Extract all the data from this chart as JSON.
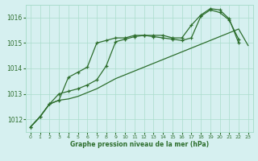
{
  "xlabel": "Graphe pression niveau de la mer (hPa)",
  "background_color": "#d6f0f0",
  "grid_color": "#aaddcc",
  "line_color": "#2d6e2d",
  "marker": "+",
  "ylim": [
    1011.5,
    1016.5
  ],
  "xlim": [
    -0.5,
    23.5
  ],
  "yticks": [
    1012,
    1013,
    1014,
    1015,
    1016
  ],
  "xticks": [
    0,
    1,
    2,
    3,
    4,
    5,
    6,
    7,
    8,
    9,
    10,
    11,
    12,
    13,
    14,
    15,
    16,
    17,
    18,
    19,
    20,
    21,
    22,
    23
  ],
  "line1_x": [
    0,
    1,
    2,
    3,
    4,
    5,
    6,
    7,
    8,
    9,
    10,
    11,
    12,
    13,
    14,
    15,
    16,
    17,
    18,
    19,
    20,
    21,
    22,
    23
  ],
  "line1_y": [
    1011.7,
    1012.1,
    1012.6,
    1012.75,
    1012.8,
    1012.9,
    1013.05,
    1013.2,
    1013.4,
    1013.6,
    1013.75,
    1013.9,
    1014.05,
    1014.2,
    1014.35,
    1014.5,
    1014.65,
    1014.8,
    1014.95,
    1015.1,
    1015.25,
    1015.4,
    1015.55,
    1014.9
  ],
  "line2_x": [
    0,
    1,
    2,
    3,
    4,
    5,
    6,
    7,
    8,
    9,
    10,
    11,
    12,
    13,
    14,
    15,
    16,
    17,
    18,
    19,
    20,
    21,
    22
  ],
  "line2_y": [
    1011.7,
    1012.1,
    1012.6,
    1012.75,
    1013.65,
    1013.85,
    1014.05,
    1015.0,
    1015.1,
    1015.2,
    1015.2,
    1015.3,
    1015.3,
    1015.25,
    1015.2,
    1015.15,
    1015.1,
    1015.2,
    1016.05,
    1016.3,
    1016.2,
    1015.9,
    1015.15
  ],
  "line3_x": [
    0,
    1,
    2,
    3,
    4,
    5,
    6,
    7,
    8,
    9,
    10,
    11,
    12,
    13,
    14,
    15,
    16,
    17,
    18,
    19,
    20,
    21,
    22
  ],
  "line3_y": [
    1011.7,
    1012.1,
    1012.6,
    1013.0,
    1013.1,
    1013.2,
    1013.35,
    1013.55,
    1014.1,
    1015.05,
    1015.15,
    1015.25,
    1015.3,
    1015.3,
    1015.3,
    1015.2,
    1015.2,
    1015.7,
    1016.1,
    1016.35,
    1016.3,
    1015.95,
    1015.0
  ]
}
